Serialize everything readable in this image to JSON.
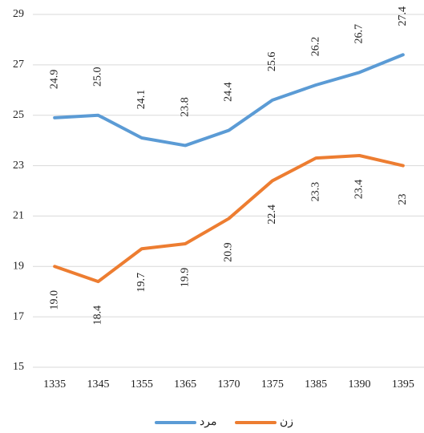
{
  "chart_data": {
    "type": "line",
    "categories": [
      "1335",
      "1345",
      "1355",
      "1365",
      "1370",
      "1375",
      "1385",
      "1390",
      "1395"
    ],
    "series": [
      {
        "name": "مرد",
        "color": "#5b9bd5",
        "values": [
          24.9,
          25.0,
          24.1,
          23.8,
          24.4,
          25.6,
          26.2,
          26.7,
          27.4
        ],
        "value_labels": [
          "24.9",
          "25.0",
          "24.1",
          "23.8",
          "24.4",
          "25.6",
          "26.2",
          "26.7",
          "27.4"
        ]
      },
      {
        "name": "زن",
        "color": "#ed7d31",
        "values": [
          19.0,
          18.4,
          19.7,
          19.9,
          20.9,
          22.4,
          23.3,
          23.4,
          23
        ],
        "value_labels": [
          "19.0",
          "18.4",
          "19.7",
          "19.9",
          "20.9",
          "22.4",
          "23.3",
          "23.4",
          "23"
        ]
      }
    ],
    "ylim": [
      15,
      29
    ],
    "yticks": [
      15,
      17,
      19,
      21,
      23,
      25,
      27,
      29
    ],
    "grid": true,
    "legend": "bottom"
  }
}
